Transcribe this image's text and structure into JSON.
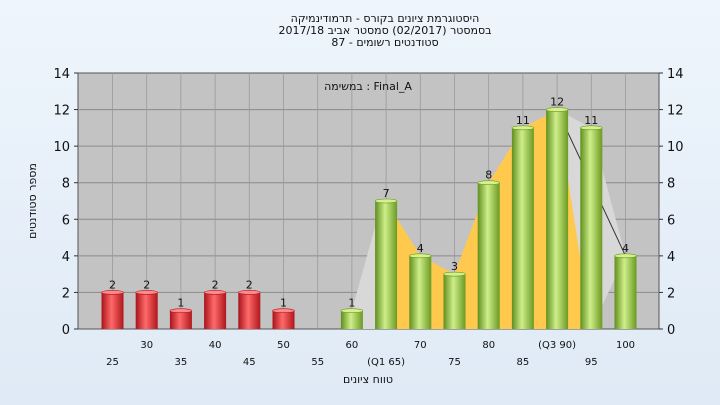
{
  "chart_data": {
    "type": "bar",
    "title_lines": [
      "היסטוגרמת ציונים בקורס - תרמודינמיקה",
      "בסמסטר  (02/2017)  סמסטר אביב 2017/18",
      "סטודנטים רשומים - 87"
    ],
    "annotation": "במשימה : Final_A",
    "xlabel": "טווח ציונים",
    "ylabel": "מספר סטודנטים",
    "ylim": [
      0,
      14
    ],
    "yticks": [
      0,
      2,
      4,
      6,
      8,
      10,
      12,
      14
    ],
    "grid": true,
    "categories": [
      "25",
      "30",
      "35",
      "40",
      "45",
      "50",
      "55",
      "60",
      "(Q1 65)",
      "70",
      "75",
      "80",
      "85",
      "(Q3 90)",
      "95",
      "100"
    ],
    "values": [
      2,
      2,
      1,
      2,
      2,
      1,
      0,
      1,
      7,
      4,
      3,
      8,
      11,
      12,
      11,
      4
    ],
    "bar_colors": [
      "red",
      "red",
      "red",
      "red",
      "red",
      "red",
      "red",
      "green",
      "green",
      "green",
      "green",
      "green",
      "green",
      "green",
      "green",
      "green"
    ],
    "colors": {
      "plot_bg": "#c3c3c3",
      "red_bar": "#e0252b",
      "green_bar": "#8fbf3a",
      "band": "#ffc94d",
      "band_tail": "#d8d8d8"
    }
  }
}
